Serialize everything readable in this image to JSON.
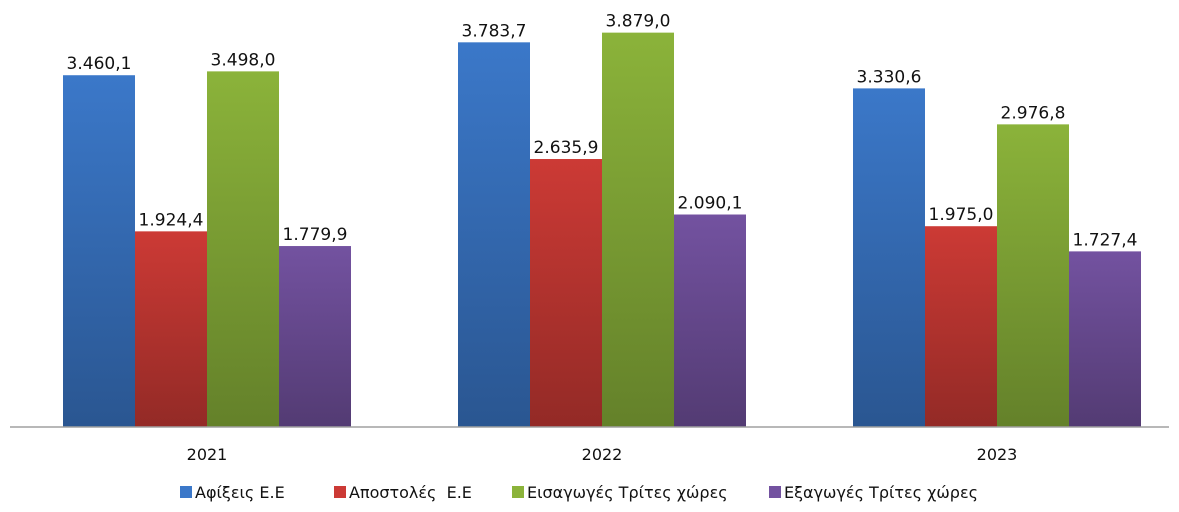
{
  "chart_data": {
    "type": "bar",
    "categories": [
      "2021",
      "2022",
      "2023"
    ],
    "series": [
      {
        "name": "Αφίξεις Ε.Ε",
        "values": [
          3460.1,
          3783.7,
          3330.6
        ],
        "labels": [
          "3.460,1",
          "3.783,7",
          "3.330,6"
        ],
        "color": "#3b78c9"
      },
      {
        "name": "Αποστολές  Ε.Ε",
        "values": [
          1924.4,
          2635.9,
          1975.0
        ],
        "labels": [
          "1.924,4",
          "2.635,9",
          "1.975,0"
        ],
        "color": "#cc3a35"
      },
      {
        "name": "Εισαγωγές Τρίτες χώρες",
        "values": [
          3498.0,
          3879.0,
          2976.8
        ],
        "labels": [
          "3.498,0",
          "3.879,0",
          "2.976,8"
        ],
        "color": "#8bb33a"
      },
      {
        "name": "Εξαγωγές Τρίτες χώρες",
        "values": [
          1779.9,
          2090.1,
          1727.4
        ],
        "labels": [
          "1.779,9",
          "2.090,1",
          "1.727,4"
        ],
        "color": "#7352a0"
      }
    ],
    "ylim": [
      0,
      4200
    ],
    "grid": false,
    "legend": "bottom",
    "data_labels": true
  }
}
